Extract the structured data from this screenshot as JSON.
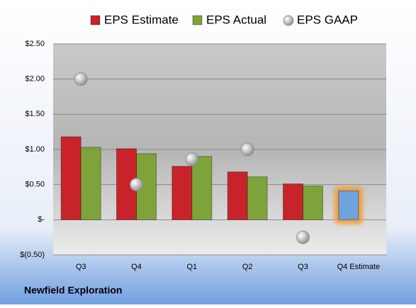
{
  "chart_data": {
    "type": "bar",
    "footer": "Newfield Exploration",
    "categories": [
      "Q3",
      "Q4",
      "Q1",
      "Q2",
      "Q3",
      "Q4 Estimate"
    ],
    "series": [
      {
        "name": "EPS Estimate",
        "color": "#c8232a",
        "colors": [
          "#c8232a",
          "#c8232a",
          "#c8232a",
          "#c8232a",
          "#c8232a",
          "#6fa3dd"
        ],
        "values": [
          1.18,
          1.01,
          0.76,
          0.68,
          0.51,
          0.41
        ]
      },
      {
        "name": "EPS Actual",
        "color": "#7ea33a",
        "values": [
          1.03,
          0.94,
          0.9,
          0.61,
          0.48,
          null
        ]
      },
      {
        "name": "EPS GAAP",
        "color": "#a8a8a8",
        "marker": "circle",
        "values": [
          2.0,
          0.5,
          0.86,
          1.0,
          -0.25,
          null
        ]
      }
    ],
    "ylim": [
      -0.5,
      2.5
    ],
    "yticks": [
      {
        "value": -0.5,
        "label": "$(0.50)"
      },
      {
        "value": 0,
        "label": "$-"
      },
      {
        "value": 0.5,
        "label": "$0.50"
      },
      {
        "value": 1,
        "label": "$1.00"
      },
      {
        "value": 1.5,
        "label": "$1.50"
      },
      {
        "value": 2,
        "label": "$2.00"
      },
      {
        "value": 2.5,
        "label": "$2.50"
      }
    ],
    "grid": true
  }
}
